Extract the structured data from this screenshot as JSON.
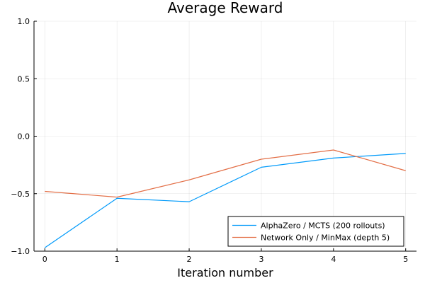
{
  "chart_data": {
    "type": "line",
    "title": "Average Reward",
    "xlabel": "Iteration number",
    "ylabel": "",
    "x": [
      0,
      1,
      2,
      3,
      4,
      5
    ],
    "xlim": [
      -0.15,
      5.15
    ],
    "ylim": [
      -1.0,
      1.0
    ],
    "xticks": [
      0,
      1,
      2,
      3,
      4,
      5
    ],
    "xtick_labels": [
      "0",
      "1",
      "2",
      "3",
      "4",
      "5"
    ],
    "yticks": [
      -1.0,
      -0.5,
      0.0,
      0.5,
      1.0
    ],
    "ytick_labels": [
      "−1.0",
      "−0.5",
      "0.0",
      "0.5",
      "1.0"
    ],
    "grid": true,
    "legend_position": "bottom-right",
    "series": [
      {
        "name": "AlphaZero / MCTS (200 rollouts)",
        "color": "#009AFA",
        "values": [
          -0.97,
          -0.54,
          -0.57,
          -0.27,
          -0.19,
          -0.15
        ]
      },
      {
        "name": "Network Only / MinMax (depth 5)",
        "color": "#E36F47",
        "values": [
          -0.48,
          -0.53,
          -0.38,
          -0.2,
          -0.12,
          -0.3
        ]
      }
    ]
  }
}
